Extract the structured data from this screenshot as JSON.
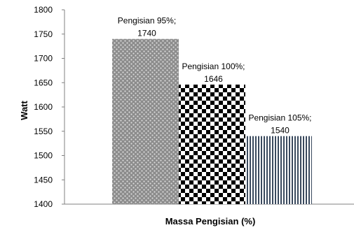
{
  "chart_data": {
    "type": "bar",
    "categories": [
      "Pengisian 95%",
      "Pengisian 100%",
      "Pengisian 105%"
    ],
    "values": [
      1740,
      1646,
      1540
    ],
    "data_labels": [
      [
        "Pengisian 95%;",
        "1740"
      ],
      [
        "Pengisian 100%;",
        "1646"
      ],
      [
        "Pengisian 105%;",
        "1540"
      ]
    ],
    "xlabel": "Massa Pengisian (%)",
    "ylabel": "Watt",
    "ylim": [
      1400,
      1800
    ],
    "yticks": [
      "1800",
      "1750",
      "1700",
      "1650",
      "1600",
      "1550",
      "1500",
      "1450",
      "1400"
    ],
    "grid": false,
    "legend": "none",
    "bar_patterns": [
      "dotted-grey",
      "checkerboard",
      "vertical-stripes"
    ],
    "colors": {
      "bar1": "#8c8c8c",
      "bar2": "#000000",
      "bar3": "#3a4a5e",
      "axis": "#808080"
    }
  }
}
